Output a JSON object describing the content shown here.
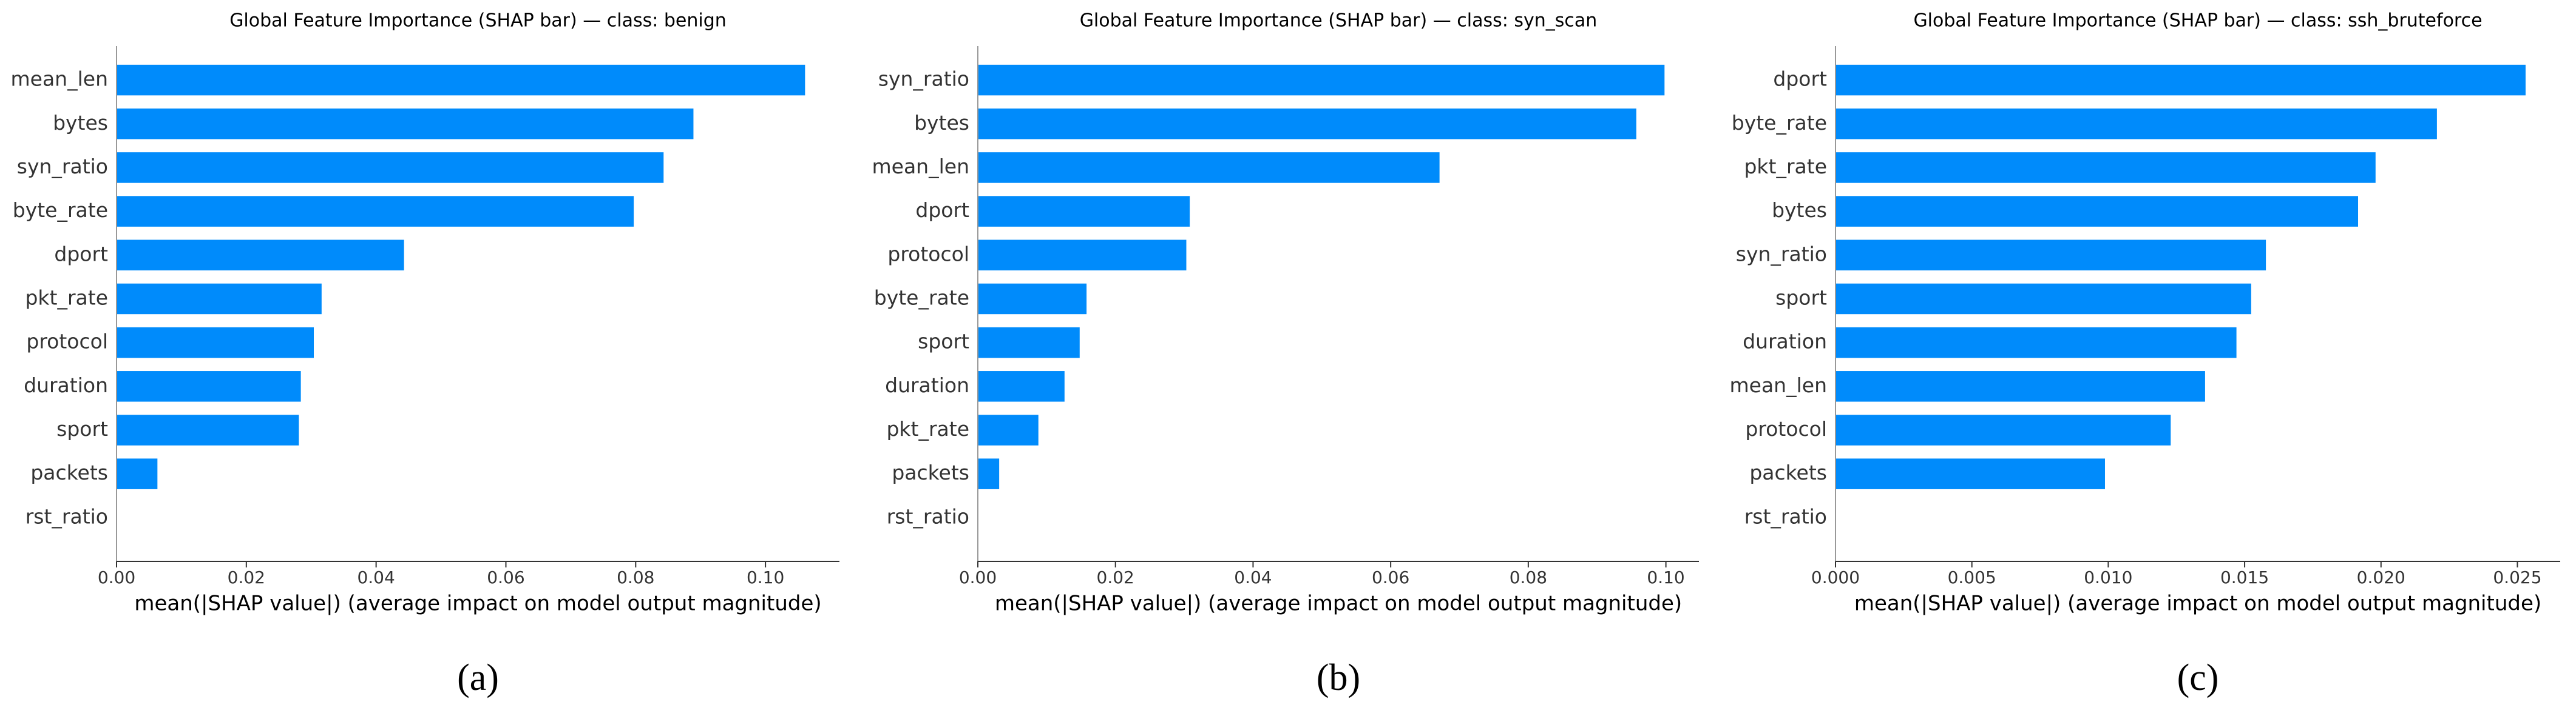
{
  "chart_data": [
    {
      "type": "barh",
      "title": "Global Feature Importance (SHAP bar) — class: benign",
      "panel_label": "(a)",
      "xlabel": "mean(|SHAP value|) (average impact on model output magnitude)",
      "color": "#008bfb",
      "categories": [
        "mean_len",
        "bytes",
        "syn_ratio",
        "byte_rate",
        "dport",
        "pkt_rate",
        "protocol",
        "duration",
        "sport",
        "packets",
        "rst_ratio"
      ],
      "values": [
        0.1061,
        0.0889,
        0.0843,
        0.0797,
        0.0443,
        0.0316,
        0.0304,
        0.0284,
        0.0281,
        0.0063,
        0
      ],
      "xlim": [
        0,
        0.1114
      ],
      "xticks": [
        {
          "value": 0,
          "label": "0.00"
        },
        {
          "value": 0.02,
          "label": "0.02"
        },
        {
          "value": 0.04,
          "label": "0.04"
        },
        {
          "value": 0.06,
          "label": "0.06"
        },
        {
          "value": 0.08,
          "label": "0.08"
        },
        {
          "value": 0.1,
          "label": "0.10"
        }
      ]
    },
    {
      "type": "barh",
      "title": "Global Feature Importance (SHAP bar) — class: syn_scan",
      "panel_label": "(b)",
      "xlabel": "mean(|SHAP value|) (average impact on model output magnitude)",
      "color": "#008bfb",
      "categories": [
        "syn_ratio",
        "bytes",
        "mean_len",
        "dport",
        "protocol",
        "byte_rate",
        "sport",
        "duration",
        "pkt_rate",
        "packets",
        "rst_ratio"
      ],
      "values": [
        0.0998,
        0.0957,
        0.0671,
        0.0308,
        0.0303,
        0.0158,
        0.0148,
        0.0126,
        0.0088,
        0.0031,
        0
      ],
      "xlim": [
        0,
        0.1048
      ],
      "xticks": [
        {
          "value": 0,
          "label": "0.00"
        },
        {
          "value": 0.02,
          "label": "0.02"
        },
        {
          "value": 0.04,
          "label": "0.04"
        },
        {
          "value": 0.06,
          "label": "0.06"
        },
        {
          "value": 0.08,
          "label": "0.08"
        },
        {
          "value": 0.1,
          "label": "0.10"
        }
      ]
    },
    {
      "type": "barh",
      "title": "Global Feature Importance (SHAP bar) — class: ssh_bruteforce",
      "panel_label": "(c)",
      "xlabel": "mean(|SHAP value|) (average impact on model output magnitude)",
      "color": "#008bfb",
      "categories": [
        "dport",
        "byte_rate",
        "pkt_rate",
        "bytes",
        "syn_ratio",
        "sport",
        "duration",
        "mean_len",
        "protocol",
        "packets",
        "rst_ratio"
      ],
      "values": [
        0.0253,
        0.02205,
        0.0198,
        0.01916,
        0.01578,
        0.01524,
        0.0147,
        0.01355,
        0.01229,
        0.00988,
        0
      ],
      "xlim": [
        0,
        0.02657
      ],
      "xticks": [
        {
          "value": 0,
          "label": "0.000"
        },
        {
          "value": 0.005,
          "label": "0.005"
        },
        {
          "value": 0.01,
          "label": "0.010"
        },
        {
          "value": 0.015,
          "label": "0.015"
        },
        {
          "value": 0.02,
          "label": "0.020"
        },
        {
          "value": 0.025,
          "label": "0.025"
        }
      ]
    }
  ]
}
